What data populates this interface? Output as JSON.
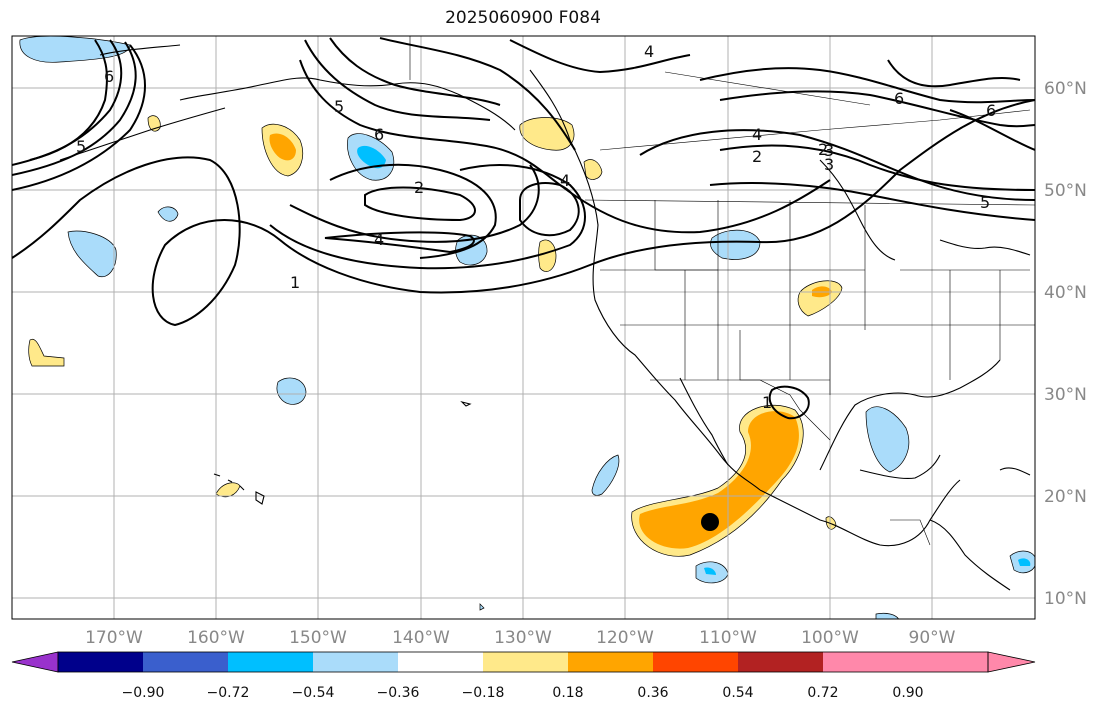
{
  "title": "2025060900 F084",
  "map": {
    "lon_labels": [
      "170°W",
      "160°W",
      "150°W",
      "140°W",
      "130°W",
      "120°W",
      "110°W",
      "100°W",
      "90°W"
    ],
    "lat_labels": [
      "60°N",
      "50°N",
      "40°N",
      "30°N",
      "20°N",
      "10°N"
    ],
    "colors": {
      "grid": "#b0b0b0",
      "coast": "#000000",
      "contour": "#000000",
      "pos_light": "#ffe98a",
      "pos_orange": "#ffa500",
      "neg_light": "#aadcfa",
      "neg_cyan": "#00bfff"
    },
    "contour_labels": [
      "6",
      "4",
      "3",
      "2",
      "1",
      "5",
      "6",
      "2",
      "4",
      "4",
      "2",
      "4",
      "3",
      "6",
      "6",
      "5",
      "5",
      "1"
    ]
  },
  "colorbar": {
    "ticks": [
      "−0.90",
      "−0.72",
      "−0.54",
      "−0.36",
      "−0.18",
      "0.18",
      "0.36",
      "0.54",
      "0.72",
      "0.90"
    ],
    "colors": [
      "#9932cc",
      "#00008b",
      "#3a5fcd",
      "#00bfff",
      "#aadcfa",
      "#ffffff",
      "#ffe98a",
      "#ffa500",
      "#ff4500",
      "#b22222",
      "#ff88aa"
    ]
  }
}
